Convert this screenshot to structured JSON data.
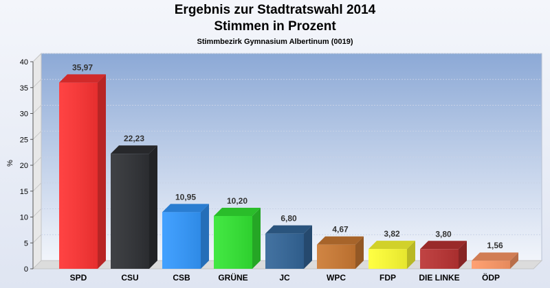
{
  "chart_data": {
    "type": "bar",
    "title": "Ergebnis zur Stadtratswahl 2014",
    "subtitle": "Stimmen in Prozent",
    "subsubtitle": "Stimmbezirk Gymnasium Albertinum (0019)",
    "ylabel": "%",
    "ylim": [
      0,
      40
    ],
    "yticks": [
      "0",
      "5",
      "10",
      "15",
      "20",
      "25",
      "30",
      "35",
      "40"
    ],
    "grid": true,
    "categories": [
      "SPD",
      "CSU",
      "CSB",
      "GRÜNE",
      "JC",
      "WPC",
      "FDP",
      "DIE LINKE",
      "ÖDP"
    ],
    "values": [
      35.97,
      22.23,
      10.95,
      10.2,
      6.8,
      4.67,
      3.82,
      3.8,
      1.56
    ],
    "labels": [
      "35,97",
      "22,23",
      "10,95",
      "10,20",
      "6,80",
      "4,67",
      "3,82",
      "3,80",
      "1,56"
    ],
    "colors": [
      "#ff3333",
      "#2f3135",
      "#3399ff",
      "#33e633",
      "#336699",
      "#cc7a33",
      "#ffff33",
      "#bb3333",
      "#ff9966"
    ]
  }
}
